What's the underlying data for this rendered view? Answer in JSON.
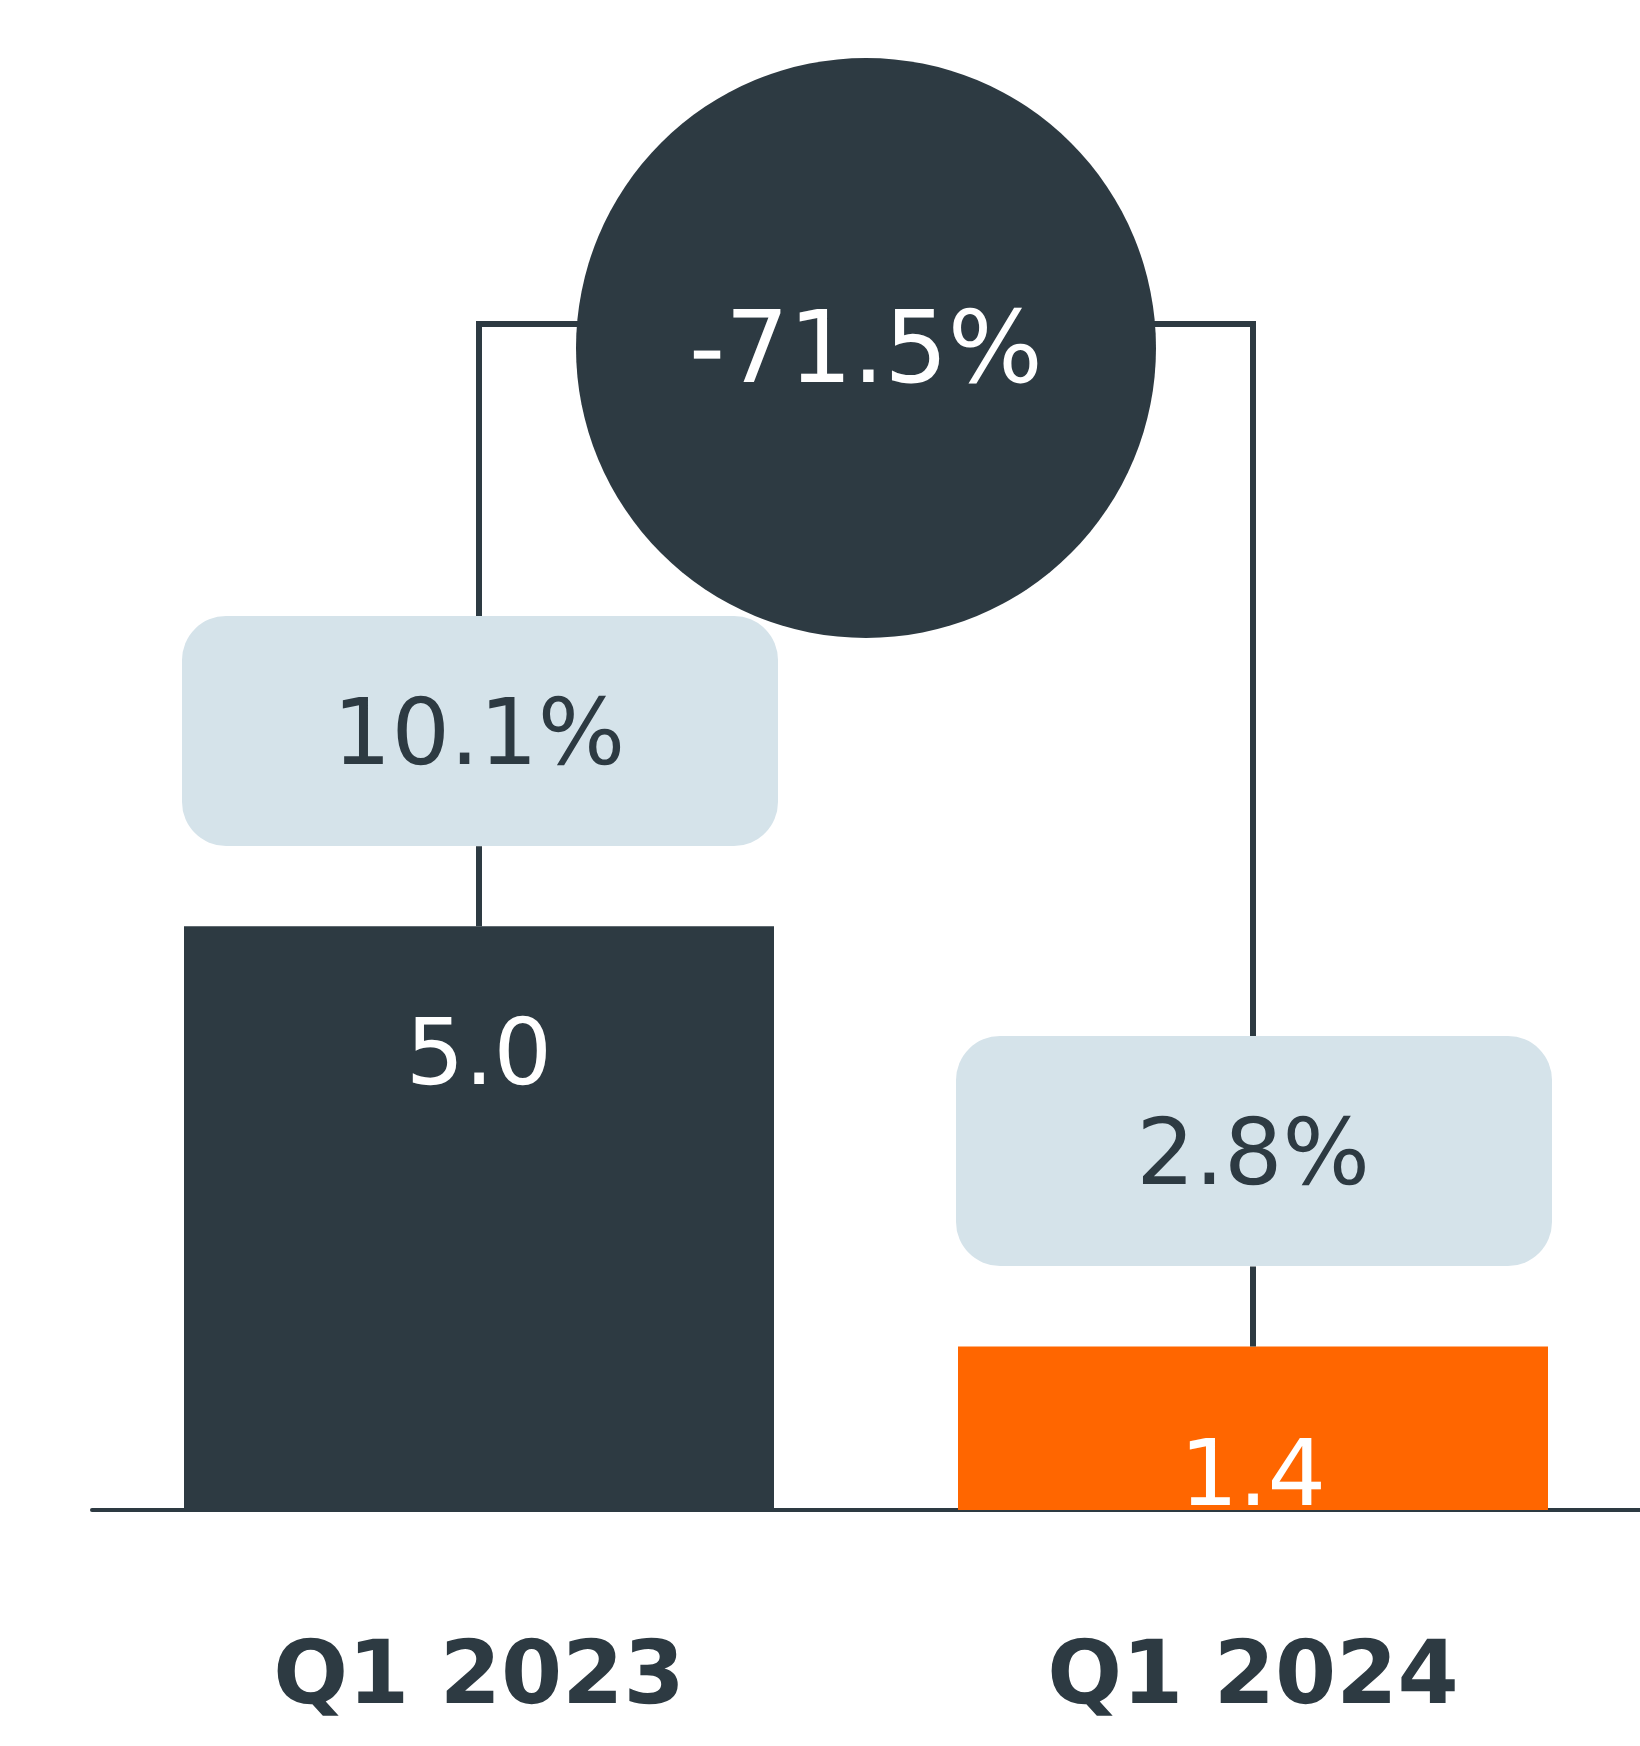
{
  "chart_data": {
    "type": "bar",
    "categories": [
      "Q1 2023",
      "Q1 2024"
    ],
    "values": [
      5.0,
      1.4
    ],
    "value_labels": [
      "5.0",
      "1.4"
    ],
    "colors": [
      "#2d3a42",
      "#ff6600"
    ],
    "annotations": [
      "10.1%",
      "2.8%",
      "-71.5%"
    ]
  }
}
